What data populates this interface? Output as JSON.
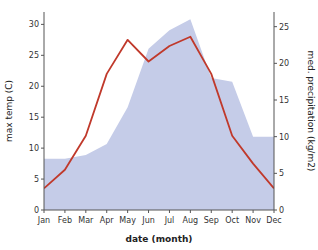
{
  "chart_data": {
    "type": "line",
    "categories": [
      "Jan",
      "Feb",
      "Mar",
      "Apr",
      "May",
      "Jun",
      "Jul",
      "Aug",
      "Sep",
      "Oct",
      "Nov",
      "Dec"
    ],
    "xlabel": "date (month)",
    "ylabel": "max temp (C)",
    "y2label": "med. precipitation (kg/m2)",
    "ylim": [
      0,
      32
    ],
    "yticks": [
      0,
      5,
      10,
      15,
      20,
      25,
      30
    ],
    "y2lim": [
      0,
      27
    ],
    "y2ticks": [
      0,
      5,
      10,
      15,
      20,
      25
    ],
    "grid": false,
    "series": [
      {
        "type": "area",
        "axis": "y2",
        "color": "#c5cce8",
        "values": [
          7.0,
          7.0,
          7.5,
          9.0,
          14.0,
          22.0,
          24.5,
          26.0,
          18.0,
          17.5,
          10.0,
          10.0
        ]
      },
      {
        "type": "line",
        "color": "#c0392b",
        "values": [
          3.5,
          6.5,
          12.0,
          22.0,
          27.5,
          24.0,
          26.5,
          28.0,
          22.0,
          12.0,
          7.5,
          3.5
        ]
      }
    ]
  }
}
